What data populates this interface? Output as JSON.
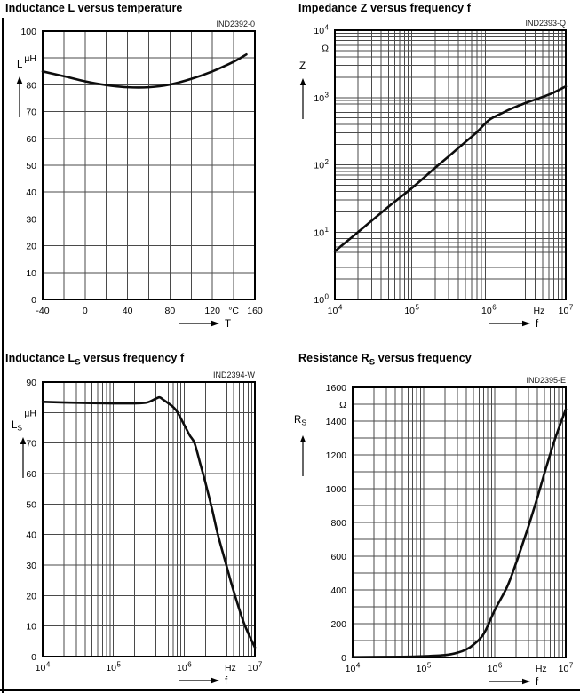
{
  "chart_data": [
    {
      "id": "inductance-vs-temperature",
      "type": "line",
      "title_parts": [
        {
          "t": "Inductance L versus temperature"
        }
      ],
      "code": "IND2392-0",
      "y_quantity_parts": [
        {
          "t": "L"
        }
      ],
      "x_arrow_label": "T",
      "x_axis": {
        "scale": "linear",
        "min": -40,
        "max": 160,
        "grid_step": 20,
        "ticks": [
          {
            "v": -40,
            "t": "-40"
          },
          {
            "v": 0,
            "t": "0"
          },
          {
            "v": 40,
            "t": "40"
          },
          {
            "v": 80,
            "t": "80"
          },
          {
            "v": 120,
            "t": "120"
          },
          {
            "v": 140,
            "t": "°C"
          },
          {
            "v": 160,
            "t": "160"
          }
        ]
      },
      "y_axis": {
        "scale": "linear",
        "min": 0,
        "max": 100,
        "grid_step": 10,
        "ticks": [
          {
            "v": 100,
            "t": "100"
          },
          {
            "v": 90,
            "t": "µH"
          },
          {
            "v": 80,
            "t": "80"
          },
          {
            "v": 70,
            "t": "70"
          },
          {
            "v": 60,
            "t": "60"
          },
          {
            "v": 50,
            "t": "50"
          },
          {
            "v": 40,
            "t": "40"
          },
          {
            "v": 30,
            "t": "30"
          },
          {
            "v": 20,
            "t": "20"
          },
          {
            "v": 10,
            "t": "10"
          },
          {
            "v": 0,
            "t": "0"
          }
        ]
      },
      "series": {
        "x": [
          -40,
          -20,
          0,
          20,
          40,
          60,
          80,
          100,
          120,
          140,
          152
        ],
        "y": [
          85,
          83.2,
          81.3,
          79.9,
          79.1,
          79.1,
          80.1,
          82.2,
          85,
          88.6,
          91.3
        ]
      }
    },
    {
      "id": "impedance-vs-frequency",
      "type": "line",
      "title_parts": [
        {
          "t": "Impedance Z versus frequency f"
        }
      ],
      "code": "IND2393-Q",
      "y_quantity_parts": [
        {
          "t": "Z"
        }
      ],
      "x_arrow_label": "f",
      "x_axis": {
        "scale": "log",
        "min": 10000,
        "max": 10000000,
        "ticks": [
          {
            "v": 10000,
            "t": "10",
            "sup": "4"
          },
          {
            "v": 100000,
            "t": "10",
            "sup": "5"
          },
          {
            "v": 1000000,
            "t": "10",
            "sup": "6"
          },
          {
            "v": 4500000,
            "t": "Hz"
          },
          {
            "v": 10000000,
            "t": "10",
            "sup": "7"
          }
        ]
      },
      "y_axis": {
        "scale": "log",
        "min": 1,
        "max": 10000,
        "ticks": [
          {
            "v": 10000,
            "t": "10",
            "sup": "4"
          },
          {
            "v": 5500,
            "t": "Ω"
          },
          {
            "v": 1000,
            "t": "10",
            "sup": "3"
          },
          {
            "v": 100,
            "t": "10",
            "sup": "2"
          },
          {
            "v": 10,
            "t": "10",
            "sup": "1"
          },
          {
            "v": 1,
            "t": "10",
            "sup": "0"
          }
        ]
      },
      "series": {
        "x": [
          10000,
          20000,
          50000,
          100000,
          200000,
          300000,
          500000,
          700000,
          1000000,
          1500000,
          2000000,
          3000000,
          5000000,
          7000000,
          10000000
        ],
        "y": [
          5.2,
          10,
          24,
          45,
          90,
          133,
          220,
          305,
          460,
          590,
          690,
          830,
          1020,
          1190,
          1465
        ]
      }
    },
    {
      "id": "inductance-ls-vs-frequency",
      "type": "line",
      "title_parts": [
        {
          "t": "Inductance L"
        },
        {
          "t": "S",
          "sub": true
        },
        {
          "t": " versus frequency f"
        }
      ],
      "code": "IND2394-W",
      "y_quantity_parts": [
        {
          "t": "L"
        },
        {
          "t": "S",
          "sub": true
        }
      ],
      "x_arrow_label": "f",
      "x_axis": {
        "scale": "log",
        "min": 10000,
        "max": 10000000,
        "ticks": [
          {
            "v": 10000,
            "t": "10",
            "sup": "4"
          },
          {
            "v": 100000,
            "t": "10",
            "sup": "5"
          },
          {
            "v": 1000000,
            "t": "10",
            "sup": "6"
          },
          {
            "v": 4500000,
            "t": "Hz"
          },
          {
            "v": 10000000,
            "t": "10",
            "sup": "7"
          }
        ]
      },
      "y_axis": {
        "scale": "linear",
        "min": 0,
        "max": 90,
        "grid_step": 10,
        "ticks": [
          {
            "v": 90,
            "t": "90"
          },
          {
            "v": 80,
            "t": "µH"
          },
          {
            "v": 70,
            "t": "70"
          },
          {
            "v": 60,
            "t": "60"
          },
          {
            "v": 50,
            "t": "50"
          },
          {
            "v": 40,
            "t": "40"
          },
          {
            "v": 30,
            "t": "30"
          },
          {
            "v": 20,
            "t": "20"
          },
          {
            "v": 10,
            "t": "10"
          },
          {
            "v": 0,
            "t": "0"
          }
        ]
      },
      "series": {
        "x": [
          10000,
          30000,
          100000,
          200000,
          300000,
          400000,
          450000,
          500000,
          600000,
          700000,
          800000,
          1000000,
          1200000,
          1400000,
          1700000,
          2000000,
          2500000,
          3000000,
          4000000,
          5000000,
          7000000,
          10000000
        ],
        "y": [
          83.5,
          83.2,
          83,
          83,
          83.3,
          84.6,
          85,
          84.3,
          83,
          81.8,
          80.2,
          76,
          72.5,
          70,
          63,
          57,
          48,
          40,
          29.5,
          21.5,
          11,
          3
        ]
      }
    },
    {
      "id": "resistance-rs-vs-frequency",
      "type": "line",
      "title_parts": [
        {
          "t": "Resistance R"
        },
        {
          "t": "S",
          "sub": true
        },
        {
          "t": " versus frequency"
        }
      ],
      "code": "IND2395-E",
      "y_quantity_parts": [
        {
          "t": "R"
        },
        {
          "t": "S",
          "sub": true
        }
      ],
      "x_arrow_label": "f",
      "x_axis": {
        "scale": "log",
        "min": 10000,
        "max": 10000000,
        "ticks": [
          {
            "v": 10000,
            "t": "10",
            "sup": "4"
          },
          {
            "v": 100000,
            "t": "10",
            "sup": "5"
          },
          {
            "v": 1000000,
            "t": "10",
            "sup": "6"
          },
          {
            "v": 4500000,
            "t": "Hz"
          },
          {
            "v": 10000000,
            "t": "10",
            "sup": "7"
          }
        ]
      },
      "y_axis": {
        "scale": "linear",
        "min": 0,
        "max": 1600,
        "grid_step": 100,
        "ticks": [
          {
            "v": 1600,
            "t": "1600"
          },
          {
            "v": 1500,
            "t": "Ω"
          },
          {
            "v": 1400,
            "t": "1400"
          },
          {
            "v": 1200,
            "t": "1200"
          },
          {
            "v": 1000,
            "t": "1000"
          },
          {
            "v": 800,
            "t": "800"
          },
          {
            "v": 600,
            "t": "600"
          },
          {
            "v": 400,
            "t": "400"
          },
          {
            "v": 200,
            "t": "200"
          },
          {
            "v": 0,
            "t": "0"
          }
        ]
      },
      "series": {
        "x": [
          10000,
          50000,
          100000,
          200000,
          300000,
          400000,
          500000,
          700000,
          1000000,
          1500000,
          2000000,
          2500000,
          3000000,
          4000000,
          5000000,
          7000000,
          10000000
        ],
        "y": [
          2,
          4,
          7,
          14,
          28,
          48,
          75,
          140,
          280,
          420,
          560,
          680,
          780,
          950,
          1090,
          1290,
          1470
        ]
      }
    }
  ],
  "colors": {
    "grid": "#4a4a4a",
    "frame": "#000000",
    "curve": "#0d0d0d",
    "text": "#000000"
  }
}
